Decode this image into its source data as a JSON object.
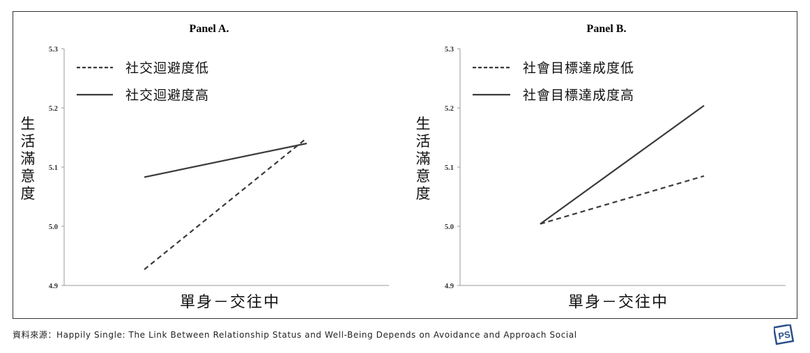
{
  "source_text": "資料來源：Happily Single: The Link Between Relationship Status and Well-Being Depends on Avoidance and Approach Social",
  "logo_text": "PS",
  "colors": {
    "line": "#3a3a3a",
    "axis": "#999999",
    "logo": "#2a4f8a"
  },
  "chart_data": [
    {
      "type": "line",
      "title": "Panel A.",
      "xlabel": "單身－交往中",
      "ylabel": "生活滿意度",
      "ylim": [
        4.9,
        5.3
      ],
      "yticks": [
        "5.3",
        "5.2",
        "5.1",
        "5.0",
        "4.9"
      ],
      "categories": [
        "單身",
        "交往中"
      ],
      "series": [
        {
          "name": "社交迴避度低",
          "style": "dashed",
          "values": [
            4.927,
            5.149
          ]
        },
        {
          "name": "社交迴避度高",
          "style": "solid",
          "values": [
            5.083,
            5.14
          ]
        }
      ],
      "legend": "top-left",
      "grid": false
    },
    {
      "type": "line",
      "title": "Panel B.",
      "xlabel": "單身－交往中",
      "ylabel": "生活滿意度",
      "ylim": [
        4.9,
        5.3
      ],
      "yticks": [
        "5.3",
        "5.2",
        "5.1",
        "5.0",
        "4.9"
      ],
      "categories": [
        "單身",
        "交往中"
      ],
      "series": [
        {
          "name": "社會目標達成度低",
          "style": "dashed",
          "values": [
            5.004,
            5.085
          ]
        },
        {
          "name": "社會目標達成度高",
          "style": "solid",
          "values": [
            5.004,
            5.204
          ]
        }
      ],
      "legend": "top-left",
      "grid": false
    }
  ]
}
